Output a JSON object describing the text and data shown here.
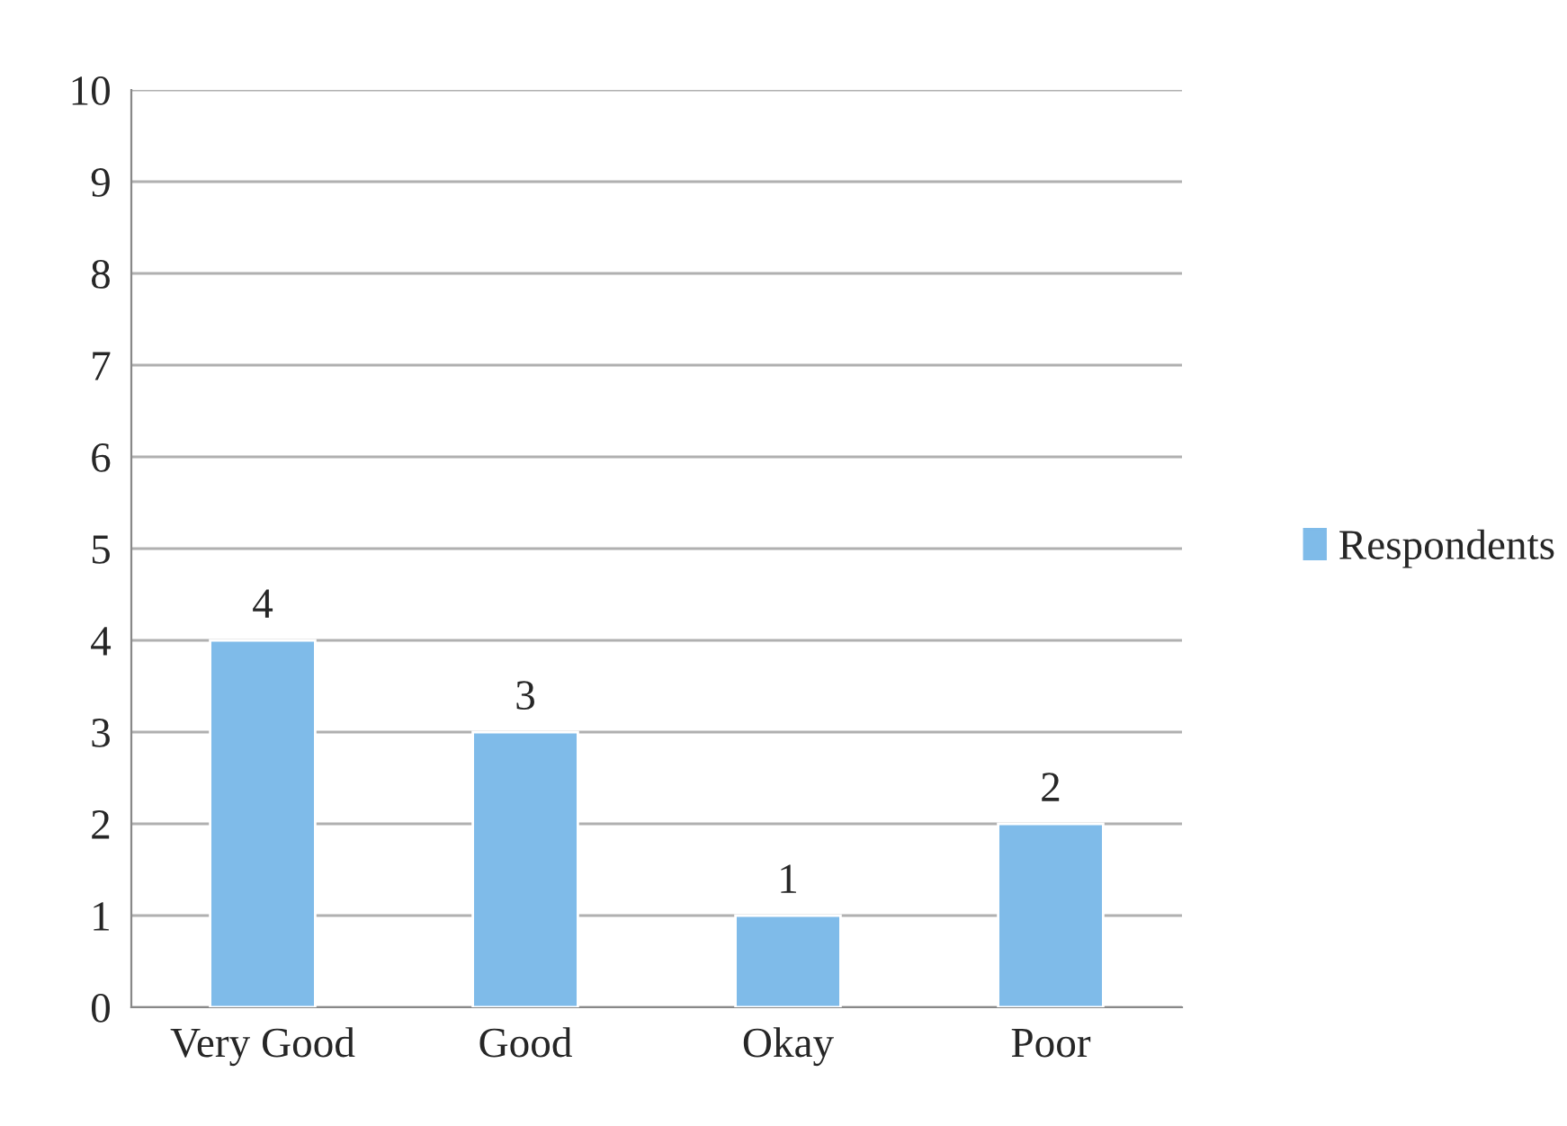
{
  "chart_data": {
    "type": "bar",
    "categories": [
      "Very Good",
      "Good",
      "Okay",
      "Poor"
    ],
    "series": [
      {
        "name": "Respondents",
        "color": "#7fbbe9",
        "values": [
          4,
          3,
          1,
          2
        ]
      }
    ],
    "ylim": [
      0,
      10
    ],
    "yticks": [
      0,
      1,
      2,
      3,
      4,
      5,
      6,
      7,
      8,
      9,
      10
    ],
    "grid": "y",
    "legend": "right",
    "data_labels": true
  }
}
